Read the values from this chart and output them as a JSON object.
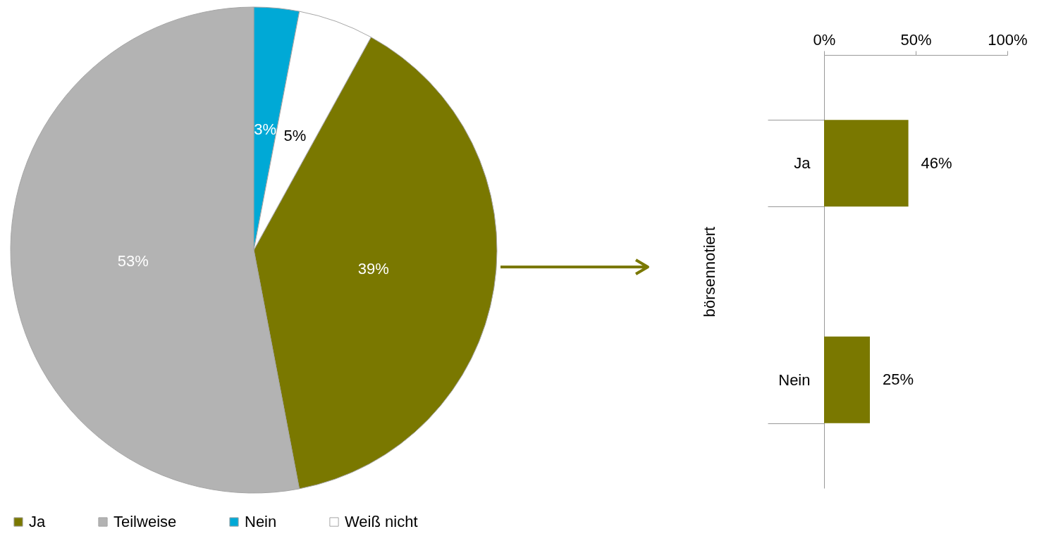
{
  "chart_data": [
    {
      "type": "pie",
      "categories": [
        "Ja",
        "Teilweise",
        "Nein",
        "Weiß nicht"
      ],
      "values": [
        39,
        53,
        3,
        5
      ],
      "colors": [
        "#7a7800",
        "#b3b3b3",
        "#00a9d6",
        "#ffffff"
      ],
      "value_labels": [
        "39%",
        "53%",
        "3%",
        "5%"
      ],
      "legend": "bottom"
    },
    {
      "type": "bar",
      "orientation": "horizontal",
      "categories": [
        "Ja",
        "Nein"
      ],
      "values": [
        46,
        25
      ],
      "color": "#7a7800",
      "value_labels": [
        "46%",
        "25%"
      ],
      "ylabel": "börsennotiert",
      "xlim": [
        0,
        100
      ],
      "xticks": [
        {
          "value": 0,
          "label": "0%"
        },
        {
          "value": 50,
          "label": "50%"
        },
        {
          "value": 100,
          "label": "100%"
        }
      ]
    }
  ]
}
